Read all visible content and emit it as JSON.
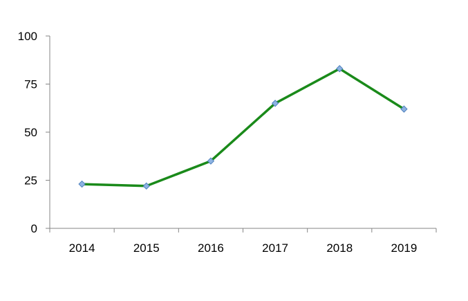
{
  "chart_data": {
    "type": "line",
    "categories": [
      "2014",
      "2015",
      "2016",
      "2017",
      "2018",
      "2019"
    ],
    "series": [
      {
        "values": [
          23,
          22,
          35,
          65,
          83,
          62
        ]
      }
    ],
    "y_ticks": [
      "0",
      "25",
      "50",
      "75",
      "100"
    ],
    "ylim": [
      0,
      100
    ],
    "grid": false,
    "legend": "none",
    "colors": {
      "line": "#1a8a1a",
      "marker_fill": "#8db3e2",
      "marker_stroke": "#4f81bd",
      "axis": "#868686"
    },
    "marker": "diamond"
  }
}
